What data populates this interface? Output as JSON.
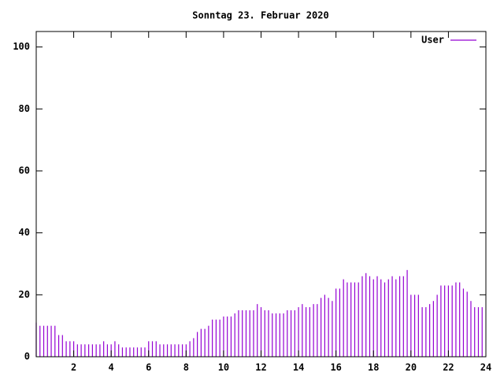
{
  "chart_data": {
    "type": "impulses",
    "title": "Sonntag 23. Februar 2020",
    "x": [
      0,
      0.2,
      0.4,
      0.6,
      0.8,
      1.0,
      1.2,
      1.4,
      1.6,
      1.8,
      2.0,
      2.2,
      2.4,
      2.6,
      2.8,
      3.0,
      3.2,
      3.4,
      3.6,
      3.8,
      4.0,
      4.2,
      4.4,
      4.6,
      4.8,
      5.0,
      5.2,
      5.4,
      5.6,
      5.8,
      6.0,
      6.2,
      6.4,
      6.6,
      6.8,
      7.0,
      7.2,
      7.4,
      7.6,
      7.8,
      8.0,
      8.2,
      8.4,
      8.6,
      8.8,
      9.0,
      9.2,
      9.4,
      9.6,
      9.8,
      10.0,
      10.2,
      10.4,
      10.6,
      10.8,
      11.0,
      11.2,
      11.4,
      11.6,
      11.8,
      12.0,
      12.2,
      12.4,
      12.6,
      12.8,
      13.0,
      13.2,
      13.4,
      13.6,
      13.8,
      14.0,
      14.2,
      14.4,
      14.6,
      14.8,
      15.0,
      15.2,
      15.4,
      15.6,
      15.8,
      16.0,
      16.2,
      16.4,
      16.6,
      16.8,
      17.0,
      17.2,
      17.4,
      17.6,
      17.8,
      18.0,
      18.2,
      18.4,
      18.6,
      18.8,
      19.0,
      19.2,
      19.4,
      19.6,
      19.8,
      20.0,
      20.2,
      20.4,
      20.6,
      20.8,
      21.0,
      21.2,
      21.4,
      21.6,
      21.8,
      22.0,
      22.2,
      22.4,
      22.6,
      22.8,
      23.0,
      23.2,
      23.4,
      23.6,
      23.8
    ],
    "series": [
      {
        "name": "User",
        "color": "#9400d3",
        "values": [
          11,
          10,
          10,
          10,
          10,
          10,
          7,
          7,
          5,
          5,
          5,
          4,
          4,
          4,
          4,
          4,
          4,
          4,
          5,
          4,
          4,
          5,
          4,
          3,
          3,
          3,
          3,
          3,
          3,
          3,
          5,
          5,
          5,
          4,
          4,
          4,
          4,
          4,
          4,
          4,
          4,
          5,
          6,
          8,
          9,
          9,
          10,
          12,
          12,
          12,
          13,
          13,
          13,
          14,
          15,
          15,
          15,
          15,
          15,
          17,
          16,
          15,
          15,
          14,
          14,
          14,
          14,
          15,
          15,
          15,
          16,
          17,
          16,
          16,
          17,
          17,
          19,
          20,
          19,
          18,
          22,
          22,
          25,
          24,
          24,
          24,
          24,
          26,
          27,
          26,
          25,
          26,
          25,
          24,
          25,
          26,
          25,
          26,
          26,
          28,
          20,
          20,
          20,
          16,
          16,
          17,
          18,
          20,
          23,
          23,
          23,
          23,
          24,
          24,
          22,
          21,
          18,
          16,
          16,
          16
        ]
      }
    ],
    "xlim": [
      0,
      24
    ],
    "xticks": [
      2,
      4,
      6,
      8,
      10,
      12,
      14,
      16,
      18,
      20,
      22,
      24
    ],
    "ylim": [
      0,
      105
    ],
    "yticks": [
      0,
      20,
      40,
      60,
      80,
      100
    ],
    "legend": "top-right"
  }
}
